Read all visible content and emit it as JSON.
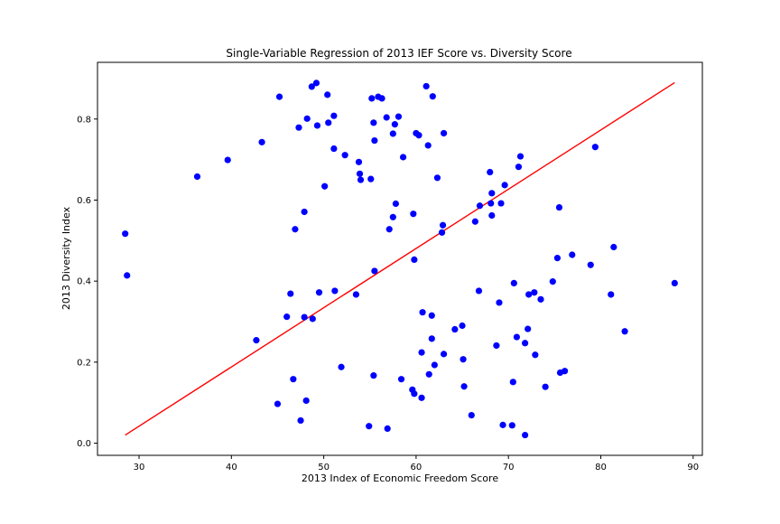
{
  "chart_data": {
    "type": "scatter",
    "title": "Single-Variable Regression of 2013 IEF Score vs. Diversity Score",
    "xlabel": "2013 Index of Economic Freedom Score",
    "ylabel": "2013 Diversity Index",
    "xlim": [
      25.5,
      91.0
    ],
    "ylim": [
      -0.03,
      0.94
    ],
    "xticks": [
      30,
      40,
      50,
      60,
      70,
      80,
      90
    ],
    "yticks": [
      0.0,
      0.2,
      0.4,
      0.6,
      0.8
    ],
    "xtick_labels": [
      "30",
      "40",
      "50",
      "60",
      "70",
      "80",
      "90"
    ],
    "ytick_labels": [
      "0.0",
      "0.2",
      "0.4",
      "0.6",
      "0.8"
    ],
    "grid": false,
    "point_color": "#0000ff",
    "line_color": "#ff0000",
    "regression_line": {
      "x": [
        28.5,
        88.0
      ],
      "y": [
        0.02,
        0.89
      ]
    },
    "points": [
      {
        "x": 28.5,
        "y": 0.517
      },
      {
        "x": 28.7,
        "y": 0.414
      },
      {
        "x": 36.3,
        "y": 0.658
      },
      {
        "x": 39.6,
        "y": 0.699
      },
      {
        "x": 42.7,
        "y": 0.254
      },
      {
        "x": 43.3,
        "y": 0.743
      },
      {
        "x": 45.0,
        "y": 0.097
      },
      {
        "x": 45.2,
        "y": 0.855
      },
      {
        "x": 46.0,
        "y": 0.312
      },
      {
        "x": 46.4,
        "y": 0.369
      },
      {
        "x": 46.7,
        "y": 0.158
      },
      {
        "x": 46.9,
        "y": 0.528
      },
      {
        "x": 47.3,
        "y": 0.779
      },
      {
        "x": 47.5,
        "y": 0.056
      },
      {
        "x": 47.9,
        "y": 0.571
      },
      {
        "x": 47.9,
        "y": 0.311
      },
      {
        "x": 48.1,
        "y": 0.105
      },
      {
        "x": 48.2,
        "y": 0.801
      },
      {
        "x": 48.7,
        "y": 0.88
      },
      {
        "x": 48.8,
        "y": 0.307
      },
      {
        "x": 49.2,
        "y": 0.889
      },
      {
        "x": 49.3,
        "y": 0.784
      },
      {
        "x": 49.5,
        "y": 0.372
      },
      {
        "x": 50.1,
        "y": 0.634
      },
      {
        "x": 50.4,
        "y": 0.86
      },
      {
        "x": 50.5,
        "y": 0.791
      },
      {
        "x": 51.1,
        "y": 0.808
      },
      {
        "x": 51.1,
        "y": 0.727
      },
      {
        "x": 51.2,
        "y": 0.376
      },
      {
        "x": 51.9,
        "y": 0.188
      },
      {
        "x": 52.3,
        "y": 0.711
      },
      {
        "x": 53.5,
        "y": 0.367
      },
      {
        "x": 53.8,
        "y": 0.694
      },
      {
        "x": 53.9,
        "y": 0.665
      },
      {
        "x": 54.0,
        "y": 0.65
      },
      {
        "x": 54.9,
        "y": 0.042
      },
      {
        "x": 55.1,
        "y": 0.652
      },
      {
        "x": 55.2,
        "y": 0.851
      },
      {
        "x": 55.4,
        "y": 0.791
      },
      {
        "x": 55.4,
        "y": 0.167
      },
      {
        "x": 55.5,
        "y": 0.747
      },
      {
        "x": 55.5,
        "y": 0.425
      },
      {
        "x": 55.9,
        "y": 0.855
      },
      {
        "x": 56.3,
        "y": 0.851
      },
      {
        "x": 56.8,
        "y": 0.804
      },
      {
        "x": 56.9,
        "y": 0.036
      },
      {
        "x": 57.1,
        "y": 0.528
      },
      {
        "x": 57.5,
        "y": 0.764
      },
      {
        "x": 57.5,
        "y": 0.558
      },
      {
        "x": 57.7,
        "y": 0.787
      },
      {
        "x": 57.8,
        "y": 0.591
      },
      {
        "x": 58.1,
        "y": 0.806
      },
      {
        "x": 58.4,
        "y": 0.158
      },
      {
        "x": 58.6,
        "y": 0.706
      },
      {
        "x": 59.6,
        "y": 0.132
      },
      {
        "x": 59.7,
        "y": 0.566
      },
      {
        "x": 59.8,
        "y": 0.453
      },
      {
        "x": 59.8,
        "y": 0.122
      },
      {
        "x": 60.0,
        "y": 0.765
      },
      {
        "x": 60.3,
        "y": 0.76
      },
      {
        "x": 60.6,
        "y": 0.224
      },
      {
        "x": 60.6,
        "y": 0.112
      },
      {
        "x": 60.7,
        "y": 0.323
      },
      {
        "x": 61.1,
        "y": 0.881
      },
      {
        "x": 61.3,
        "y": 0.735
      },
      {
        "x": 61.4,
        "y": 0.17
      },
      {
        "x": 61.7,
        "y": 0.315
      },
      {
        "x": 61.7,
        "y": 0.258
      },
      {
        "x": 61.8,
        "y": 0.856
      },
      {
        "x": 62.0,
        "y": 0.193
      },
      {
        "x": 62.3,
        "y": 0.655
      },
      {
        "x": 62.8,
        "y": 0.52
      },
      {
        "x": 62.9,
        "y": 0.538
      },
      {
        "x": 63.0,
        "y": 0.765
      },
      {
        "x": 63.0,
        "y": 0.22
      },
      {
        "x": 64.2,
        "y": 0.281
      },
      {
        "x": 65.0,
        "y": 0.29
      },
      {
        "x": 65.1,
        "y": 0.207
      },
      {
        "x": 65.2,
        "y": 0.14
      },
      {
        "x": 66.0,
        "y": 0.069
      },
      {
        "x": 66.4,
        "y": 0.547
      },
      {
        "x": 66.8,
        "y": 0.376
      },
      {
        "x": 66.9,
        "y": 0.586
      },
      {
        "x": 68.0,
        "y": 0.669
      },
      {
        "x": 68.1,
        "y": 0.592
      },
      {
        "x": 68.2,
        "y": 0.617
      },
      {
        "x": 68.2,
        "y": 0.562
      },
      {
        "x": 68.7,
        "y": 0.241
      },
      {
        "x": 69.0,
        "y": 0.347
      },
      {
        "x": 69.2,
        "y": 0.592
      },
      {
        "x": 69.4,
        "y": 0.045
      },
      {
        "x": 69.6,
        "y": 0.637
      },
      {
        "x": 70.4,
        "y": 0.044
      },
      {
        "x": 70.5,
        "y": 0.151
      },
      {
        "x": 70.6,
        "y": 0.395
      },
      {
        "x": 70.9,
        "y": 0.262
      },
      {
        "x": 71.1,
        "y": 0.682
      },
      {
        "x": 71.3,
        "y": 0.708
      },
      {
        "x": 71.8,
        "y": 0.247
      },
      {
        "x": 71.8,
        "y": 0.02
      },
      {
        "x": 72.1,
        "y": 0.282
      },
      {
        "x": 72.2,
        "y": 0.367
      },
      {
        "x": 72.8,
        "y": 0.372
      },
      {
        "x": 72.9,
        "y": 0.218
      },
      {
        "x": 73.5,
        "y": 0.355
      },
      {
        "x": 74.0,
        "y": 0.139
      },
      {
        "x": 74.8,
        "y": 0.399
      },
      {
        "x": 75.3,
        "y": 0.457
      },
      {
        "x": 75.5,
        "y": 0.582
      },
      {
        "x": 75.6,
        "y": 0.174
      },
      {
        "x": 76.1,
        "y": 0.178
      },
      {
        "x": 76.9,
        "y": 0.465
      },
      {
        "x": 78.9,
        "y": 0.44
      },
      {
        "x": 79.4,
        "y": 0.731
      },
      {
        "x": 81.1,
        "y": 0.367
      },
      {
        "x": 81.4,
        "y": 0.484
      },
      {
        "x": 82.6,
        "y": 0.276
      },
      {
        "x": 88.0,
        "y": 0.395
      }
    ]
  }
}
